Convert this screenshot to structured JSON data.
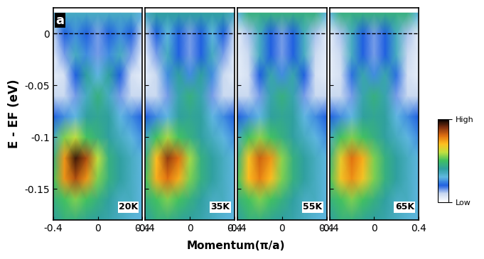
{
  "chart_data": [
    {
      "type": "heatmap",
      "annotations": [
        "a",
        "20K"
      ],
      "y_label": "E - EF (eV)",
      "x": [
        -0.4,
        -0.3,
        -0.2,
        -0.1,
        0,
        0.1,
        0.2,
        0.3,
        0.4
      ],
      "y": [
        0.02,
        0.0,
        -0.02,
        -0.04,
        -0.06,
        -0.08,
        -0.1,
        -0.12,
        -0.14,
        -0.16,
        -0.18
      ],
      "cells": [
        [
          0.3,
          0.35,
          0.35,
          0.35,
          0.35,
          0.35,
          0.35,
          0.35,
          0.3
        ],
        [
          0.1,
          0.2,
          0.25,
          0.2,
          0.15,
          0.2,
          0.25,
          0.2,
          0.1
        ],
        [
          0.05,
          0.15,
          0.35,
          0.25,
          0.15,
          0.25,
          0.35,
          0.15,
          0.05
        ],
        [
          0.05,
          0.08,
          0.2,
          0.4,
          0.3,
          0.4,
          0.2,
          0.08,
          0.05
        ],
        [
          0.1,
          0.1,
          0.15,
          0.35,
          0.45,
          0.35,
          0.15,
          0.1,
          0.1
        ],
        [
          0.2,
          0.25,
          0.3,
          0.4,
          0.42,
          0.4,
          0.3,
          0.25,
          0.2
        ],
        [
          0.35,
          0.55,
          0.6,
          0.5,
          0.45,
          0.4,
          0.35,
          0.3,
          0.25
        ],
        [
          0.45,
          0.75,
          0.95,
          0.85,
          0.6,
          0.45,
          0.4,
          0.35,
          0.3
        ],
        [
          0.5,
          0.75,
          0.85,
          0.75,
          0.55,
          0.45,
          0.4,
          0.35,
          0.3
        ],
        [
          0.45,
          0.5,
          0.55,
          0.5,
          0.45,
          0.4,
          0.35,
          0.35,
          0.3
        ],
        [
          0.4,
          0.45,
          0.45,
          0.42,
          0.4,
          0.38,
          0.35,
          0.32,
          0.3
        ]
      ],
      "xlim": [
        -0.4,
        0.4
      ],
      "ylim": [
        -0.18,
        0.025
      ],
      "xticks": [
        -0.4,
        0,
        0.4
      ],
      "yticks": [
        0,
        -0.05,
        -0.1,
        -0.15
      ],
      "reference_lines": [
        0
      ]
    },
    {
      "type": "heatmap",
      "annotations": [
        "35K"
      ],
      "tick_labels": "x",
      "x": [
        -0.4,
        -0.3,
        -0.2,
        -0.1,
        0,
        0.1,
        0.2,
        0.3,
        0.4
      ],
      "y": [
        0.02,
        0.0,
        -0.02,
        -0.04,
        -0.06,
        -0.08,
        -0.1,
        -0.12,
        -0.14,
        -0.16,
        -0.18
      ],
      "cells": [
        [
          0.35,
          0.4,
          0.4,
          0.4,
          0.4,
          0.4,
          0.4,
          0.4,
          0.35
        ],
        [
          0.1,
          0.2,
          0.3,
          0.2,
          0.15,
          0.2,
          0.3,
          0.2,
          0.1
        ],
        [
          0.05,
          0.15,
          0.35,
          0.2,
          0.15,
          0.2,
          0.35,
          0.15,
          0.05
        ],
        [
          0.05,
          0.1,
          0.25,
          0.4,
          0.25,
          0.4,
          0.25,
          0.1,
          0.05
        ],
        [
          0.1,
          0.1,
          0.15,
          0.38,
          0.45,
          0.38,
          0.15,
          0.1,
          0.1
        ],
        [
          0.2,
          0.25,
          0.3,
          0.4,
          0.42,
          0.4,
          0.3,
          0.25,
          0.2
        ],
        [
          0.35,
          0.5,
          0.58,
          0.5,
          0.45,
          0.4,
          0.35,
          0.3,
          0.25
        ],
        [
          0.45,
          0.7,
          0.88,
          0.8,
          0.58,
          0.45,
          0.4,
          0.35,
          0.3
        ],
        [
          0.5,
          0.72,
          0.8,
          0.72,
          0.55,
          0.45,
          0.4,
          0.35,
          0.3
        ],
        [
          0.45,
          0.5,
          0.55,
          0.5,
          0.45,
          0.4,
          0.35,
          0.35,
          0.3
        ],
        [
          0.4,
          0.45,
          0.45,
          0.42,
          0.4,
          0.38,
          0.35,
          0.32,
          0.3
        ]
      ],
      "xlim": [
        -0.4,
        0.4
      ],
      "ylim": [
        -0.18,
        0.025
      ],
      "xticks": [
        -0.4,
        0,
        0.4
      ],
      "yticks": [
        0,
        -0.05,
        -0.1,
        -0.15
      ],
      "reference_lines": [
        0
      ]
    },
    {
      "type": "heatmap",
      "annotations": [
        "55K"
      ],
      "tick_labels": "x",
      "x": [
        -0.4,
        -0.3,
        -0.2,
        -0.1,
        0,
        0.1,
        0.2,
        0.3,
        0.4
      ],
      "y": [
        0.02,
        0.0,
        -0.02,
        -0.04,
        -0.06,
        -0.08,
        -0.1,
        -0.12,
        -0.14,
        -0.16,
        -0.18
      ],
      "cells": [
        [
          0.3,
          0.45,
          0.45,
          0.45,
          0.45,
          0.45,
          0.45,
          0.45,
          0.3
        ],
        [
          0.05,
          0.12,
          0.35,
          0.2,
          0.15,
          0.2,
          0.35,
          0.12,
          0.05
        ],
        [
          0.05,
          0.1,
          0.35,
          0.2,
          0.15,
          0.2,
          0.35,
          0.1,
          0.05
        ],
        [
          0.05,
          0.08,
          0.2,
          0.38,
          0.25,
          0.38,
          0.2,
          0.08,
          0.05
        ],
        [
          0.1,
          0.1,
          0.15,
          0.38,
          0.45,
          0.38,
          0.15,
          0.1,
          0.1
        ],
        [
          0.2,
          0.25,
          0.3,
          0.4,
          0.42,
          0.4,
          0.3,
          0.25,
          0.2
        ],
        [
          0.35,
          0.5,
          0.56,
          0.5,
          0.45,
          0.4,
          0.35,
          0.3,
          0.25
        ],
        [
          0.45,
          0.68,
          0.82,
          0.75,
          0.56,
          0.45,
          0.4,
          0.35,
          0.3
        ],
        [
          0.5,
          0.7,
          0.78,
          0.7,
          0.55,
          0.45,
          0.4,
          0.35,
          0.3
        ],
        [
          0.45,
          0.5,
          0.55,
          0.5,
          0.45,
          0.4,
          0.35,
          0.35,
          0.3
        ],
        [
          0.4,
          0.45,
          0.45,
          0.42,
          0.4,
          0.38,
          0.35,
          0.32,
          0.3
        ]
      ],
      "xlim": [
        -0.4,
        0.4
      ],
      "ylim": [
        -0.18,
        0.025
      ],
      "xticks": [
        -0.4,
        0,
        0.4
      ],
      "yticks": [
        0,
        -0.05,
        -0.1,
        -0.15
      ],
      "reference_lines": [
        0
      ]
    },
    {
      "type": "heatmap",
      "annotations": [
        "65K"
      ],
      "tick_labels": "x",
      "x": [
        -0.4,
        -0.3,
        -0.2,
        -0.1,
        0,
        0.1,
        0.2,
        0.3,
        0.4
      ],
      "y": [
        0.02,
        0.0,
        -0.02,
        -0.04,
        -0.06,
        -0.08,
        -0.1,
        -0.12,
        -0.14,
        -0.16,
        -0.18
      ],
      "cells": [
        [
          0.3,
          0.45,
          0.45,
          0.45,
          0.45,
          0.45,
          0.45,
          0.45,
          0.3
        ],
        [
          0.05,
          0.12,
          0.35,
          0.2,
          0.15,
          0.2,
          0.35,
          0.12,
          0.05
        ],
        [
          0.05,
          0.1,
          0.35,
          0.2,
          0.15,
          0.2,
          0.35,
          0.1,
          0.05
        ],
        [
          0.05,
          0.08,
          0.22,
          0.38,
          0.25,
          0.38,
          0.22,
          0.08,
          0.05
        ],
        [
          0.1,
          0.1,
          0.15,
          0.38,
          0.45,
          0.38,
          0.15,
          0.1,
          0.1
        ],
        [
          0.2,
          0.25,
          0.3,
          0.4,
          0.42,
          0.4,
          0.3,
          0.25,
          0.2
        ],
        [
          0.35,
          0.5,
          0.55,
          0.5,
          0.45,
          0.4,
          0.35,
          0.3,
          0.25
        ],
        [
          0.45,
          0.66,
          0.8,
          0.72,
          0.55,
          0.45,
          0.4,
          0.35,
          0.3
        ],
        [
          0.5,
          0.68,
          0.76,
          0.68,
          0.55,
          0.45,
          0.4,
          0.35,
          0.3
        ],
        [
          0.45,
          0.5,
          0.55,
          0.5,
          0.45,
          0.4,
          0.35,
          0.35,
          0.3
        ],
        [
          0.4,
          0.45,
          0.45,
          0.42,
          0.4,
          0.38,
          0.35,
          0.32,
          0.3
        ]
      ],
      "xlim": [
        -0.4,
        0.4
      ],
      "ylim": [
        -0.18,
        0.025
      ],
      "xticks": [
        -0.4,
        0,
        0.4
      ],
      "yticks": [
        0,
        -0.05,
        -0.1,
        -0.15
      ],
      "reference_lines": [
        0
      ]
    }
  ],
  "x_label": "Momentum(π/a)",
  "colorbar": {
    "range": [
      0,
      1
    ],
    "ticks": [
      {
        "value": 1,
        "label": "High"
      },
      {
        "value": 0,
        "label": "Low"
      }
    ]
  }
}
